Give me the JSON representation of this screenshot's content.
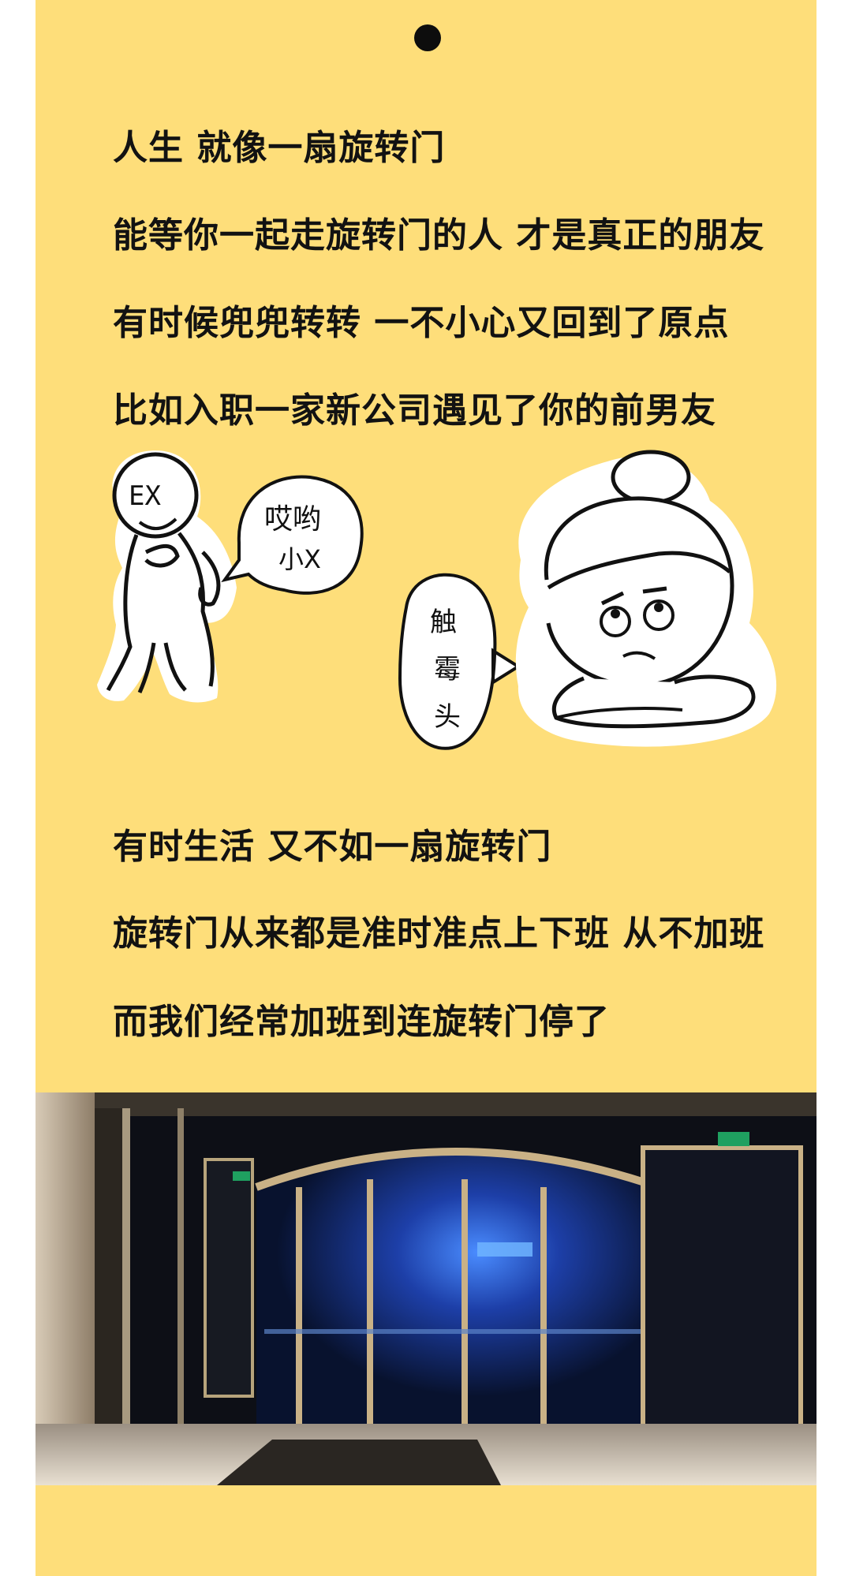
{
  "article": {
    "lines_top": [
      "人生 就像一扇旋转门",
      "能等你一起走旋转门的人 才是真正的朋友",
      "有时候兜兜转转 一不小心又回到了原点",
      "比如入职一家新公司遇见了你的前男友"
    ],
    "lines_bottom": [
      "有时生活 又不如一扇旋转门",
      "旋转门从来都是准时准点上下班 从不加班",
      "而我们经常加班到连旋转门停了"
    ]
  },
  "illustration": {
    "ex_label": "EX",
    "ex_bubble": [
      "哎哟",
      "小X"
    ],
    "girl_bubble": [
      "触",
      "霉",
      "头"
    ]
  },
  "colors": {
    "background": "#fede7a",
    "text": "#121212",
    "sticker_white": "#ffffff"
  },
  "icons": [
    "pin-dot"
  ]
}
